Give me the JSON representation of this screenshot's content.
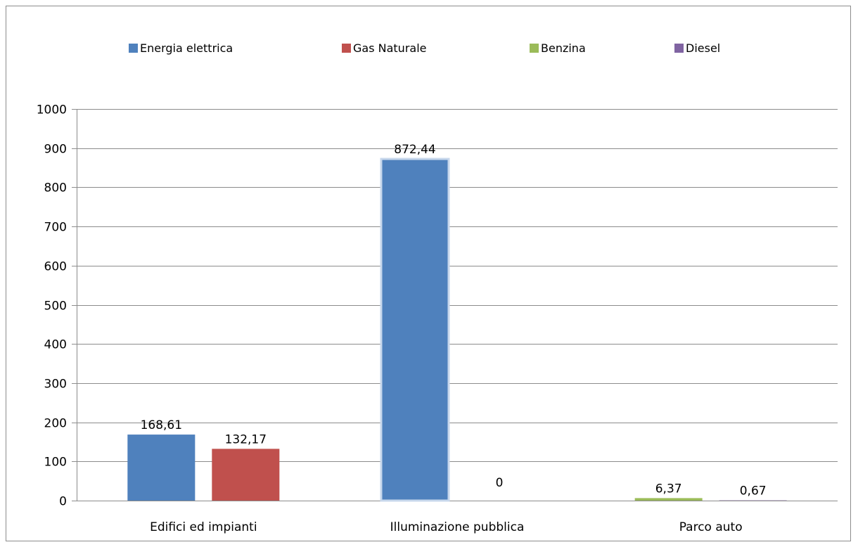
{
  "chart_data": {
    "type": "bar",
    "categories": [
      "Edifici ed impianti",
      "Illuminazione pubblica",
      "Parco auto"
    ],
    "series": [
      {
        "name": "Energia elettrica",
        "color": "#4f81bd",
        "values": [
          168.61,
          872.44,
          null
        ]
      },
      {
        "name": "Gas Naturale",
        "color": "#c0504d",
        "values": [
          132.17,
          0,
          null
        ]
      },
      {
        "name": "Benzina",
        "color": "#9bbb59",
        "values": [
          null,
          null,
          6.37
        ]
      },
      {
        "name": "Diesel",
        "color": "#8064a2",
        "values": [
          null,
          null,
          0.67
        ]
      }
    ],
    "bar_labels": [
      {
        "category": 0,
        "series": 0,
        "text": "168,61"
      },
      {
        "category": 0,
        "series": 1,
        "text": "132,17"
      },
      {
        "category": 1,
        "series": 0,
        "text": "872,44"
      },
      {
        "category": 1,
        "series": 1,
        "text": "0"
      },
      {
        "category": 2,
        "series": 2,
        "text": "6,37"
      },
      {
        "category": 2,
        "series": 3,
        "text": "0,67"
      }
    ],
    "ylim": [
      0,
      1000
    ],
    "yticks": [
      0,
      100,
      200,
      300,
      400,
      500,
      600,
      700,
      800,
      900,
      1000
    ],
    "grid": true,
    "legend_position": "top"
  }
}
